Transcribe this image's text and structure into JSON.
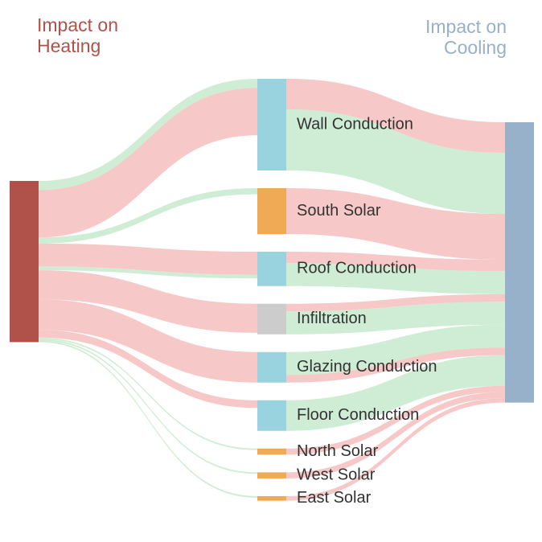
{
  "chart_data": {
    "type": "sankey",
    "nodes": [
      {
        "name": "Impact on Heating",
        "color": "#b0514a"
      },
      {
        "name": "Wall Conduction",
        "color": "#99d3df"
      },
      {
        "name": "South Solar",
        "color": "#f0aa55"
      },
      {
        "name": "Roof Conduction",
        "color": "#99d3df"
      },
      {
        "name": "Infiltration",
        "color": "#cccccc"
      },
      {
        "name": "Glazing Conduction",
        "color": "#99d3df"
      },
      {
        "name": "Floor Conduction",
        "color": "#99d3df"
      },
      {
        "name": "North Solar",
        "color": "#f0aa55"
      },
      {
        "name": "West Solar",
        "color": "#f0aa55"
      },
      {
        "name": "East Solar",
        "color": "#f0aa55"
      },
      {
        "name": "Impact on Cooling",
        "color": "#96b1c9"
      }
    ],
    "links": [
      {
        "source": 0,
        "target": 1,
        "value": 12,
        "color": "#bfe5c6"
      },
      {
        "source": 0,
        "target": 1,
        "value": 62,
        "color": "#f4b6b6"
      },
      {
        "source": 0,
        "target": 2,
        "value": 8,
        "color": "#bfe5c6"
      },
      {
        "source": 0,
        "target": 3,
        "value": 30,
        "color": "#f4b6b6"
      },
      {
        "source": 0,
        "target": 3,
        "value": 5,
        "color": "#bfe5c6"
      },
      {
        "source": 0,
        "target": 4,
        "value": 38,
        "color": "#f4b6b6"
      },
      {
        "source": 0,
        "target": 5,
        "value": 40,
        "color": "#f4b6b6"
      },
      {
        "source": 0,
        "target": 6,
        "value": 10,
        "color": "#f4b6b6"
      },
      {
        "source": 0,
        "target": 7,
        "value": 2,
        "color": "#bfe5c6"
      },
      {
        "source": 0,
        "target": 8,
        "value": 2,
        "color": "#bfe5c6"
      },
      {
        "source": 0,
        "target": 9,
        "value": 2,
        "color": "#bfe5c6"
      },
      {
        "source": 1,
        "target": 10,
        "value": 40,
        "color": "#f4b6b6"
      },
      {
        "source": 1,
        "target": 10,
        "value": 80,
        "color": "#bfe5c6"
      },
      {
        "source": 2,
        "target": 10,
        "value": 60,
        "color": "#f4b6b6"
      },
      {
        "source": 3,
        "target": 10,
        "value": 15,
        "color": "#f4b6b6"
      },
      {
        "source": 3,
        "target": 10,
        "value": 30,
        "color": "#bfe5c6"
      },
      {
        "source": 4,
        "target": 10,
        "value": 10,
        "color": "#f4b6b6"
      },
      {
        "source": 4,
        "target": 10,
        "value": 30,
        "color": "#bfe5c6"
      },
      {
        "source": 5,
        "target": 10,
        "value": 30,
        "color": "#bfe5c6"
      },
      {
        "source": 5,
        "target": 10,
        "value": 10,
        "color": "#f4b6b6"
      },
      {
        "source": 6,
        "target": 10,
        "value": 40,
        "color": "#bfe5c6"
      },
      {
        "source": 7,
        "target": 10,
        "value": 8,
        "color": "#f4b6b6"
      },
      {
        "source": 8,
        "target": 10,
        "value": 8,
        "color": "#f4b6b6"
      },
      {
        "source": 9,
        "target": 10,
        "value": 6,
        "color": "#f4b6b6"
      }
    ]
  }
}
